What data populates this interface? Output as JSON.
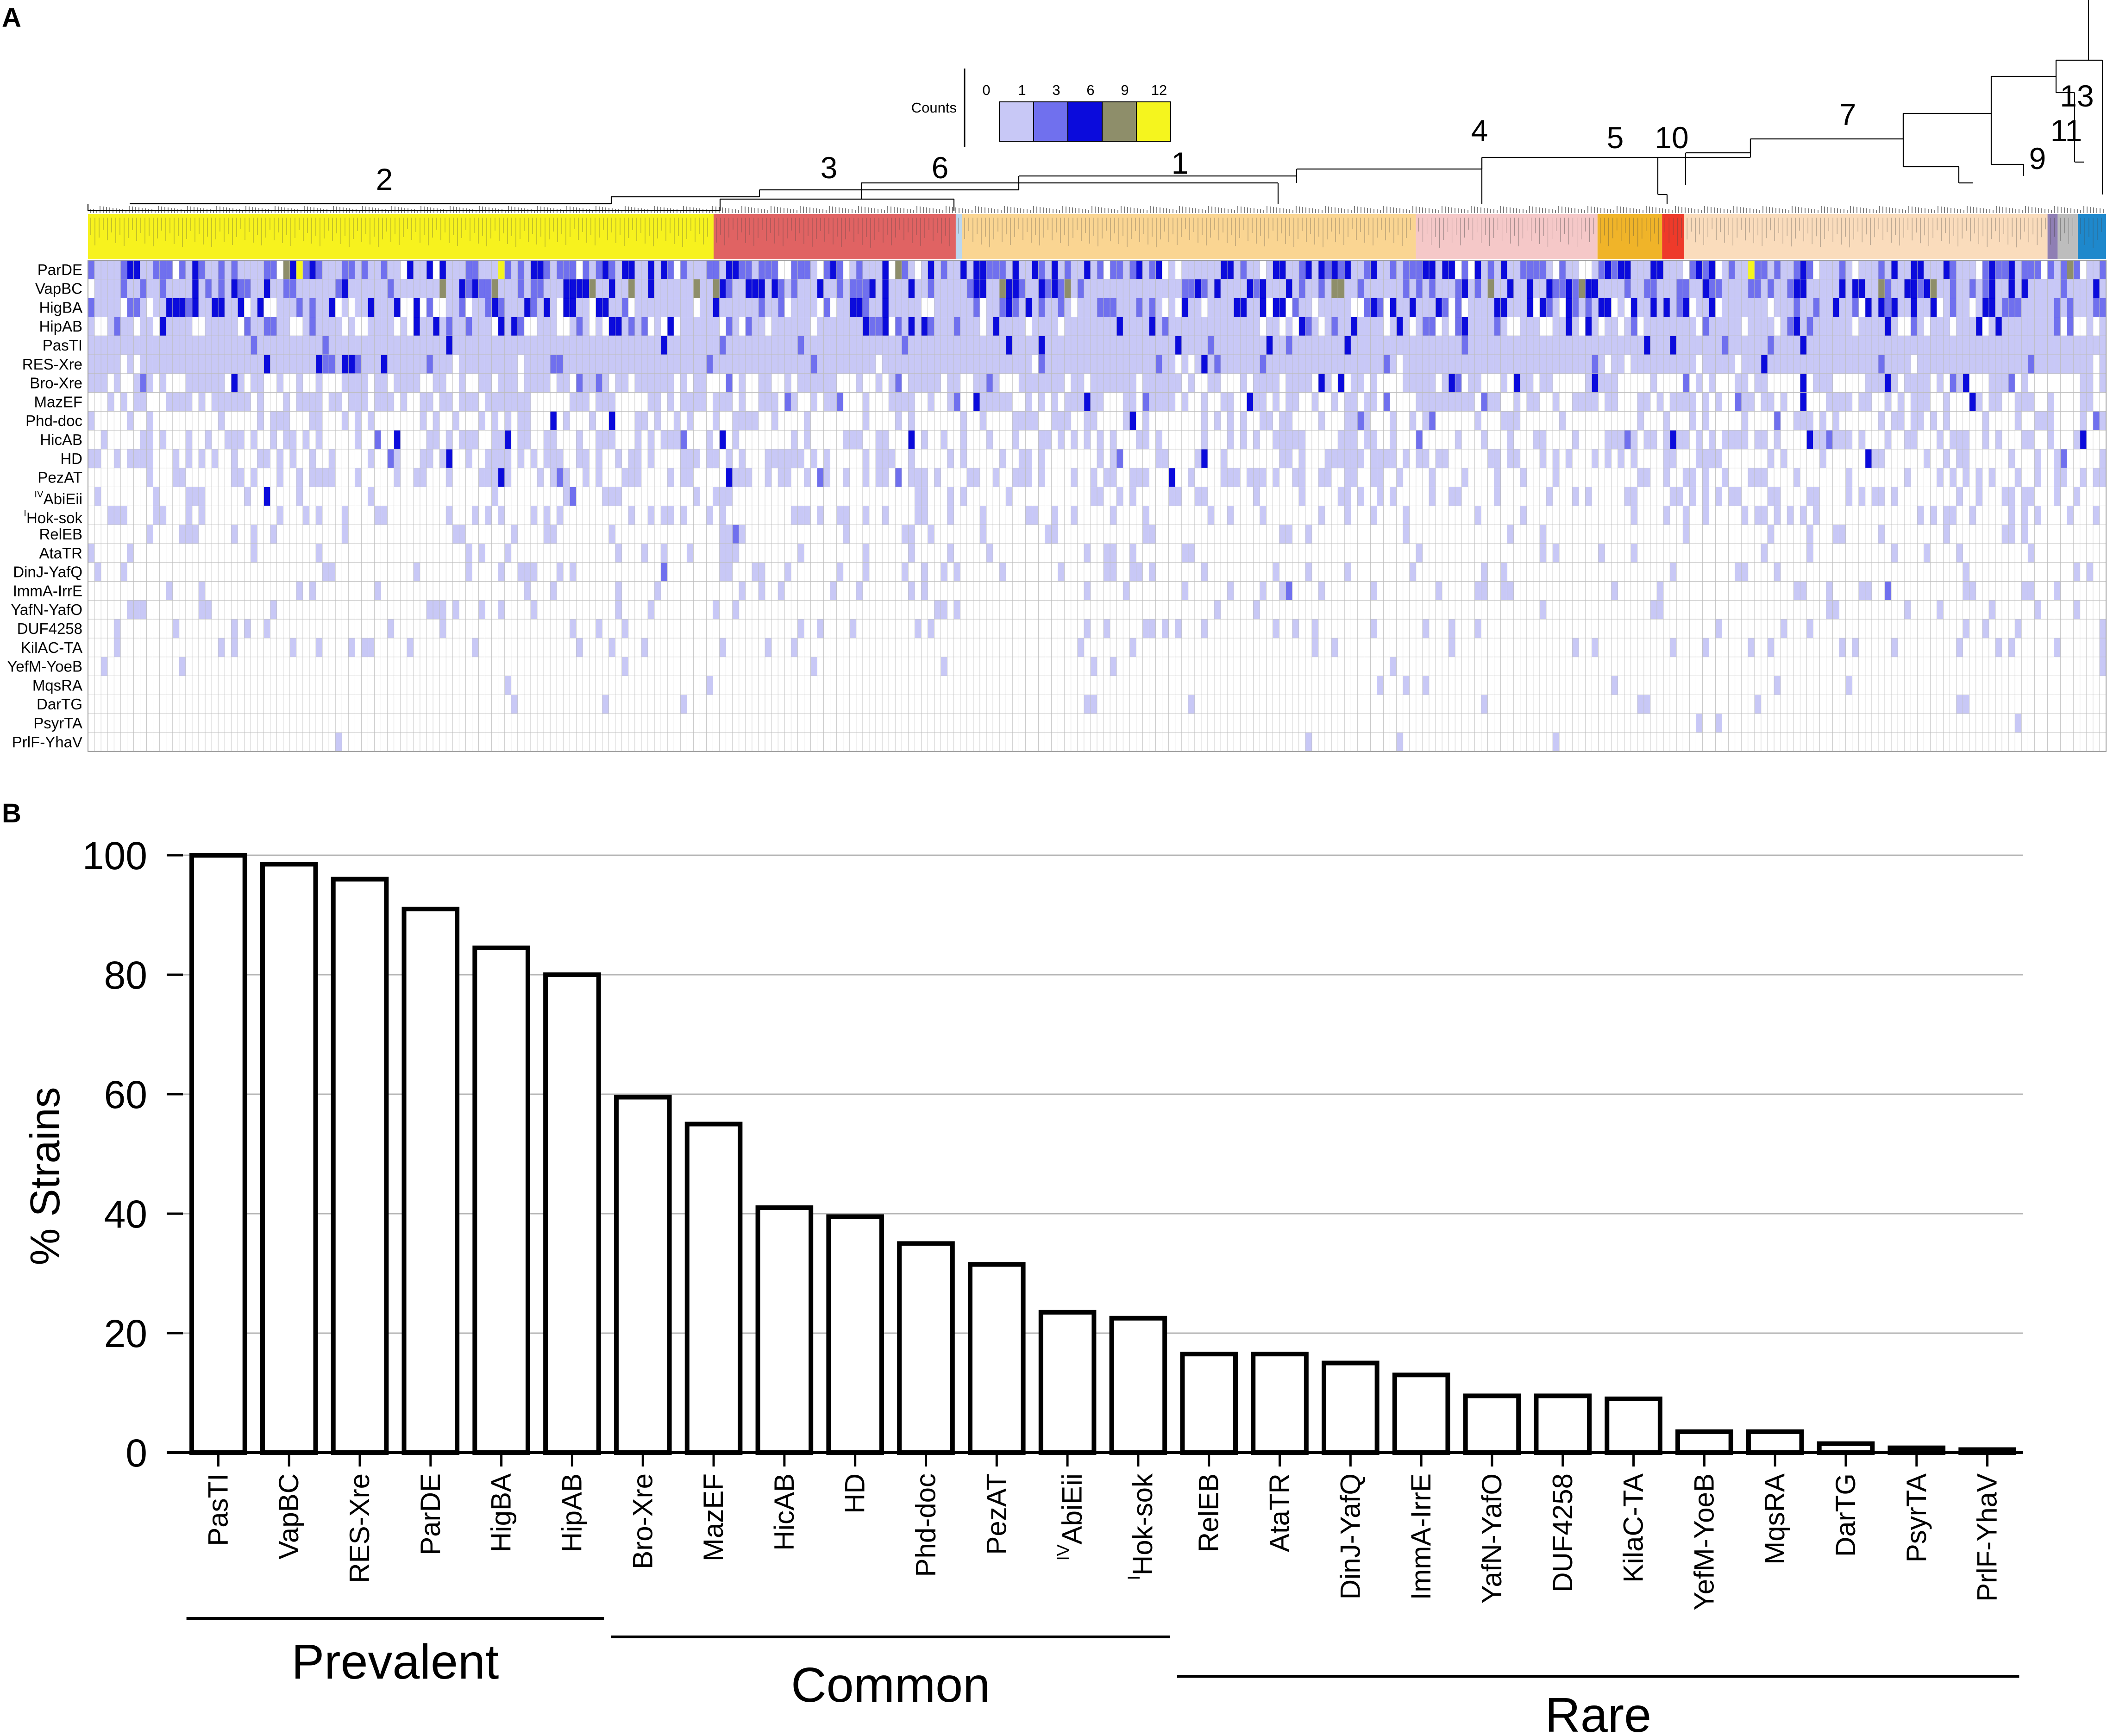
{
  "panels": {
    "a_label": "A",
    "b_label": "B"
  },
  "heatmap": {
    "legend_title": "Counts",
    "legend": [
      {
        "label": "0",
        "color": "#ffffff"
      },
      {
        "label": "1",
        "color": "#c8c8f6"
      },
      {
        "label": "3",
        "color": "#7070ee"
      },
      {
        "label": "6",
        "color": "#0b0bdc"
      },
      {
        "label": "9",
        "color": "#8e8e6a"
      },
      {
        "label": "12",
        "color": "#f5f51e"
      }
    ],
    "rows": [
      {
        "label": "ParDE",
        "pre": ""
      },
      {
        "label": "VapBC",
        "pre": ""
      },
      {
        "label": "HigBA",
        "pre": ""
      },
      {
        "label": "HipAB",
        "pre": ""
      },
      {
        "label": "PasTI",
        "pre": ""
      },
      {
        "label": "RES-Xre",
        "pre": ""
      },
      {
        "label": "Bro-Xre",
        "pre": ""
      },
      {
        "label": "MazEF",
        "pre": ""
      },
      {
        "label": "Phd-doc",
        "pre": ""
      },
      {
        "label": "HicAB",
        "pre": ""
      },
      {
        "label": "HD",
        "pre": ""
      },
      {
        "label": "PezAT",
        "pre": ""
      },
      {
        "label": "AbiEii",
        "pre": "IV"
      },
      {
        "label": "Hok-sok",
        "pre": "I"
      },
      {
        "label": "RelEB",
        "pre": ""
      },
      {
        "label": "AtaTR",
        "pre": ""
      },
      {
        "label": "DinJ-YafQ",
        "pre": ""
      },
      {
        "label": "ImmA-IrrE",
        "pre": ""
      },
      {
        "label": "YafN-YafO",
        "pre": ""
      },
      {
        "label": "DUF4258",
        "pre": ""
      },
      {
        "label": "KilAC-TA",
        "pre": ""
      },
      {
        "label": "YefM-YoeB",
        "pre": ""
      },
      {
        "label": "MqsRA",
        "pre": ""
      },
      {
        "label": "DarTG",
        "pre": ""
      },
      {
        "label": "PsyrTA",
        "pre": ""
      },
      {
        "label": "PrlF-YhaV",
        "pre": ""
      }
    ],
    "clades": [
      {
        "label": "2",
        "color": "#f7f21e",
        "start": 0.0,
        "end": 0.31
      },
      {
        "label": "3",
        "color": "#e06363",
        "start": 0.31,
        "end": 0.43
      },
      {
        "label": "6",
        "color": "#bcd7ef",
        "start": 0.43,
        "end": 0.433
      },
      {
        "label": "1",
        "color": "#fad592",
        "start": 0.433,
        "end": 0.658
      },
      {
        "label": "4",
        "color": "#f5c8c8",
        "start": 0.658,
        "end": 0.748
      },
      {
        "label": "5",
        "color": "#f0b429",
        "start": 0.748,
        "end": 0.78
      },
      {
        "label": "10",
        "color": "#ee3a2a",
        "start": 0.78,
        "end": 0.791
      },
      {
        "label": "7",
        "color": "#fadcbc",
        "start": 0.791,
        "end": 0.971
      },
      {
        "label": "9",
        "color": "#8f7fb4",
        "start": 0.971,
        "end": 0.976
      },
      {
        "label": "11",
        "color": "#bdbdbd",
        "start": 0.976,
        "end": 0.986
      },
      {
        "label": "13",
        "color": "#1e88cc",
        "start": 0.986,
        "end": 1.0
      }
    ]
  },
  "chart_data": {
    "type": "bar",
    "title": "",
    "xlabel": "",
    "ylabel": "% Strains",
    "ylim": [
      0,
      100
    ],
    "yticks": [
      "0",
      "20",
      "40",
      "60",
      "80",
      "100"
    ],
    "grid": true,
    "categories": [
      {
        "label": "PasTI",
        "pre": ""
      },
      {
        "label": "VapBC",
        "pre": ""
      },
      {
        "label": "RES-Xre",
        "pre": ""
      },
      {
        "label": "ParDE",
        "pre": ""
      },
      {
        "label": "HigBA",
        "pre": ""
      },
      {
        "label": "HipAB",
        "pre": ""
      },
      {
        "label": "Bro-Xre",
        "pre": ""
      },
      {
        "label": "MazEF",
        "pre": ""
      },
      {
        "label": "HicAB",
        "pre": ""
      },
      {
        "label": "HD",
        "pre": ""
      },
      {
        "label": "Phd-doc",
        "pre": ""
      },
      {
        "label": "PezAT",
        "pre": ""
      },
      {
        "label": "AbiEii",
        "pre": "IV"
      },
      {
        "label": "Hok-sok",
        "pre": "I"
      },
      {
        "label": "RelEB",
        "pre": ""
      },
      {
        "label": "AtaTR",
        "pre": ""
      },
      {
        "label": "DinJ-YafQ",
        "pre": ""
      },
      {
        "label": "ImmA-IrrE",
        "pre": ""
      },
      {
        "label": "YafN-YafO",
        "pre": ""
      },
      {
        "label": "DUF4258",
        "pre": ""
      },
      {
        "label": "KilaC-TA",
        "pre": ""
      },
      {
        "label": "YefM-YoeB",
        "pre": ""
      },
      {
        "label": "MqsRA",
        "pre": ""
      },
      {
        "label": "DarTG",
        "pre": ""
      },
      {
        "label": "PsyrTA",
        "pre": ""
      },
      {
        "label": "PrlF-YhaV",
        "pre": ""
      }
    ],
    "values": [
      100,
      98.5,
      96,
      91,
      84.5,
      80,
      59.5,
      55,
      41,
      39.5,
      35,
      31.5,
      23.5,
      22.5,
      16.5,
      16.5,
      15,
      13,
      9.5,
      9.5,
      9,
      3.5,
      3.5,
      1.5,
      0.8,
      0.5
    ],
    "groups": [
      {
        "label": "Prevalent",
        "from": 0,
        "to": 5
      },
      {
        "label": "Common",
        "from": 6,
        "to": 13
      },
      {
        "label": "Rare",
        "from": 14,
        "to": 25
      }
    ]
  }
}
